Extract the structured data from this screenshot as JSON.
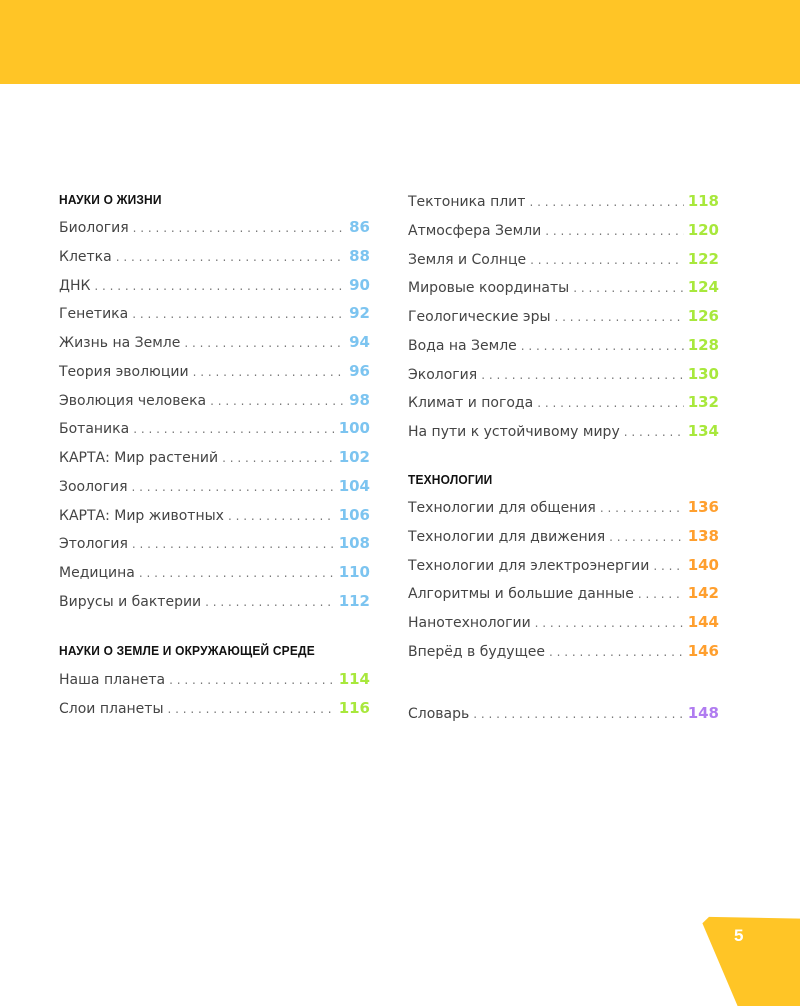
{
  "colors": {
    "banner": "#ffc526",
    "life": "#7cc4f0",
    "earth": "#a8e83c",
    "tech": "#ff9f2e",
    "glossary": "#b07cf0"
  },
  "page_number": "5",
  "sections": [
    {
      "title": "НАУКИ О ЖИЗНИ",
      "items": [
        {
          "label": "Биология",
          "page": "86"
        },
        {
          "label": "Клетка",
          "page": "88"
        },
        {
          "label": "ДНК",
          "page": "90"
        },
        {
          "label": "Генетика",
          "page": "92"
        },
        {
          "label": "Жизнь на Земле",
          "page": "94"
        },
        {
          "label": "Теория эволюции",
          "page": "96"
        },
        {
          "label": "Эволюция человека",
          "page": "98"
        },
        {
          "label": "Ботаника",
          "page": "100"
        },
        {
          "label": "КАРТА: Мир растений",
          "page": "102"
        },
        {
          "label": "Зоология",
          "page": "104"
        },
        {
          "label": "КАРТА: Мир животных",
          "page": "106"
        },
        {
          "label": "Этология",
          "page": "108"
        },
        {
          "label": "Медицина",
          "page": "110"
        },
        {
          "label": "Вирусы и бактерии",
          "page": "112"
        }
      ]
    },
    {
      "title": "НАУКИ О ЗЕМЛЕ И ОКРУЖАЮЩЕЙ СРЕДЕ",
      "items": [
        {
          "label": "Наша планета",
          "page": "114"
        },
        {
          "label": "Слои планеты",
          "page": "116"
        },
        {
          "label": "Тектоника плит",
          "page": "118"
        },
        {
          "label": "Атмосфера Земли",
          "page": "120"
        },
        {
          "label": "Земля и Солнце",
          "page": "122"
        },
        {
          "label": "Мировые координаты",
          "page": "124"
        },
        {
          "label": "Геологические эры",
          "page": "126"
        },
        {
          "label": "Вода на Земле",
          "page": "128"
        },
        {
          "label": "Экология",
          "page": "130"
        },
        {
          "label": "Климат и погода",
          "page": "132"
        },
        {
          "label": "На пути к устойчивому миру",
          "page": "134"
        }
      ]
    },
    {
      "title": "ТЕХНОЛОГИИ",
      "items": [
        {
          "label": "Технологии для общения",
          "page": "136"
        },
        {
          "label": "Технологии для движения",
          "page": "138"
        },
        {
          "label": "Технологии для электроэнергии",
          "page": "140"
        },
        {
          "label": "Алгоритмы и большие данные",
          "page": "142"
        },
        {
          "label": "Нанотехнологии",
          "page": "144"
        },
        {
          "label": "Вперёд в будущее",
          "page": "146"
        }
      ]
    },
    {
      "title": "",
      "items": [
        {
          "label": "Словарь",
          "page": "148"
        }
      ]
    }
  ]
}
